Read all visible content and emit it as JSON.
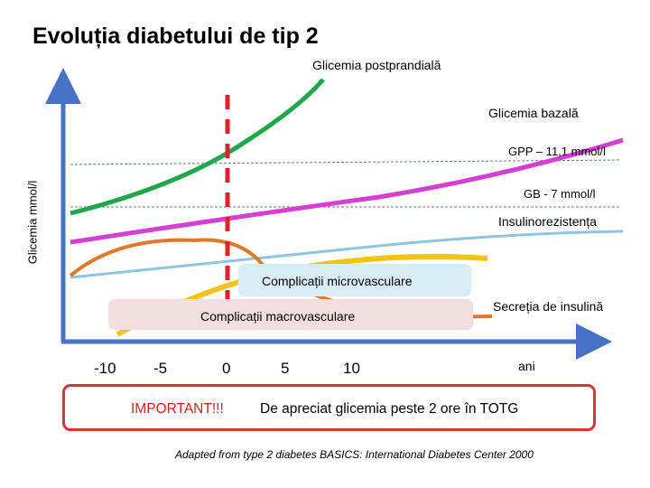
{
  "title": "Evoluția diabetului de tip 2",
  "y_axis_label": "Glicemia mmol/l",
  "x_axis_label": "ani",
  "x_ticks": [
    "-10",
    "-5",
    "0",
    "5",
    "10"
  ],
  "curves": {
    "postprandial": {
      "label": "Glicemia postprandială",
      "color": "#1fa84a"
    },
    "bazala": {
      "label": "Glicemia  bazală",
      "color": "#d63ed4"
    },
    "insulinorezistenta": {
      "label": "Insulinorezistența",
      "color": "#8ec4e4"
    },
    "secretie": {
      "label": "Secreția de insulină",
      "color": "#e0782a"
    },
    "complicatii": {
      "color": "#f5c314"
    }
  },
  "thresholds": {
    "gpp": "GPP – 11,1 mmol/l",
    "gb": "GB - 7 mmol/l"
  },
  "boxes": {
    "micro": "Complicații microvasculare",
    "macro": "Complicații macrovasculare"
  },
  "diagnosis_marker_color": "#e0202b",
  "axis_color": "#4472c4",
  "important": {
    "prefix": "IMPORTANT!!!",
    "text": "De apreciat glicemia peste 2 ore în TOTG"
  },
  "source": "Adapted from  type 2 diabetes BASICS: International  Diabetes Center 2000"
}
